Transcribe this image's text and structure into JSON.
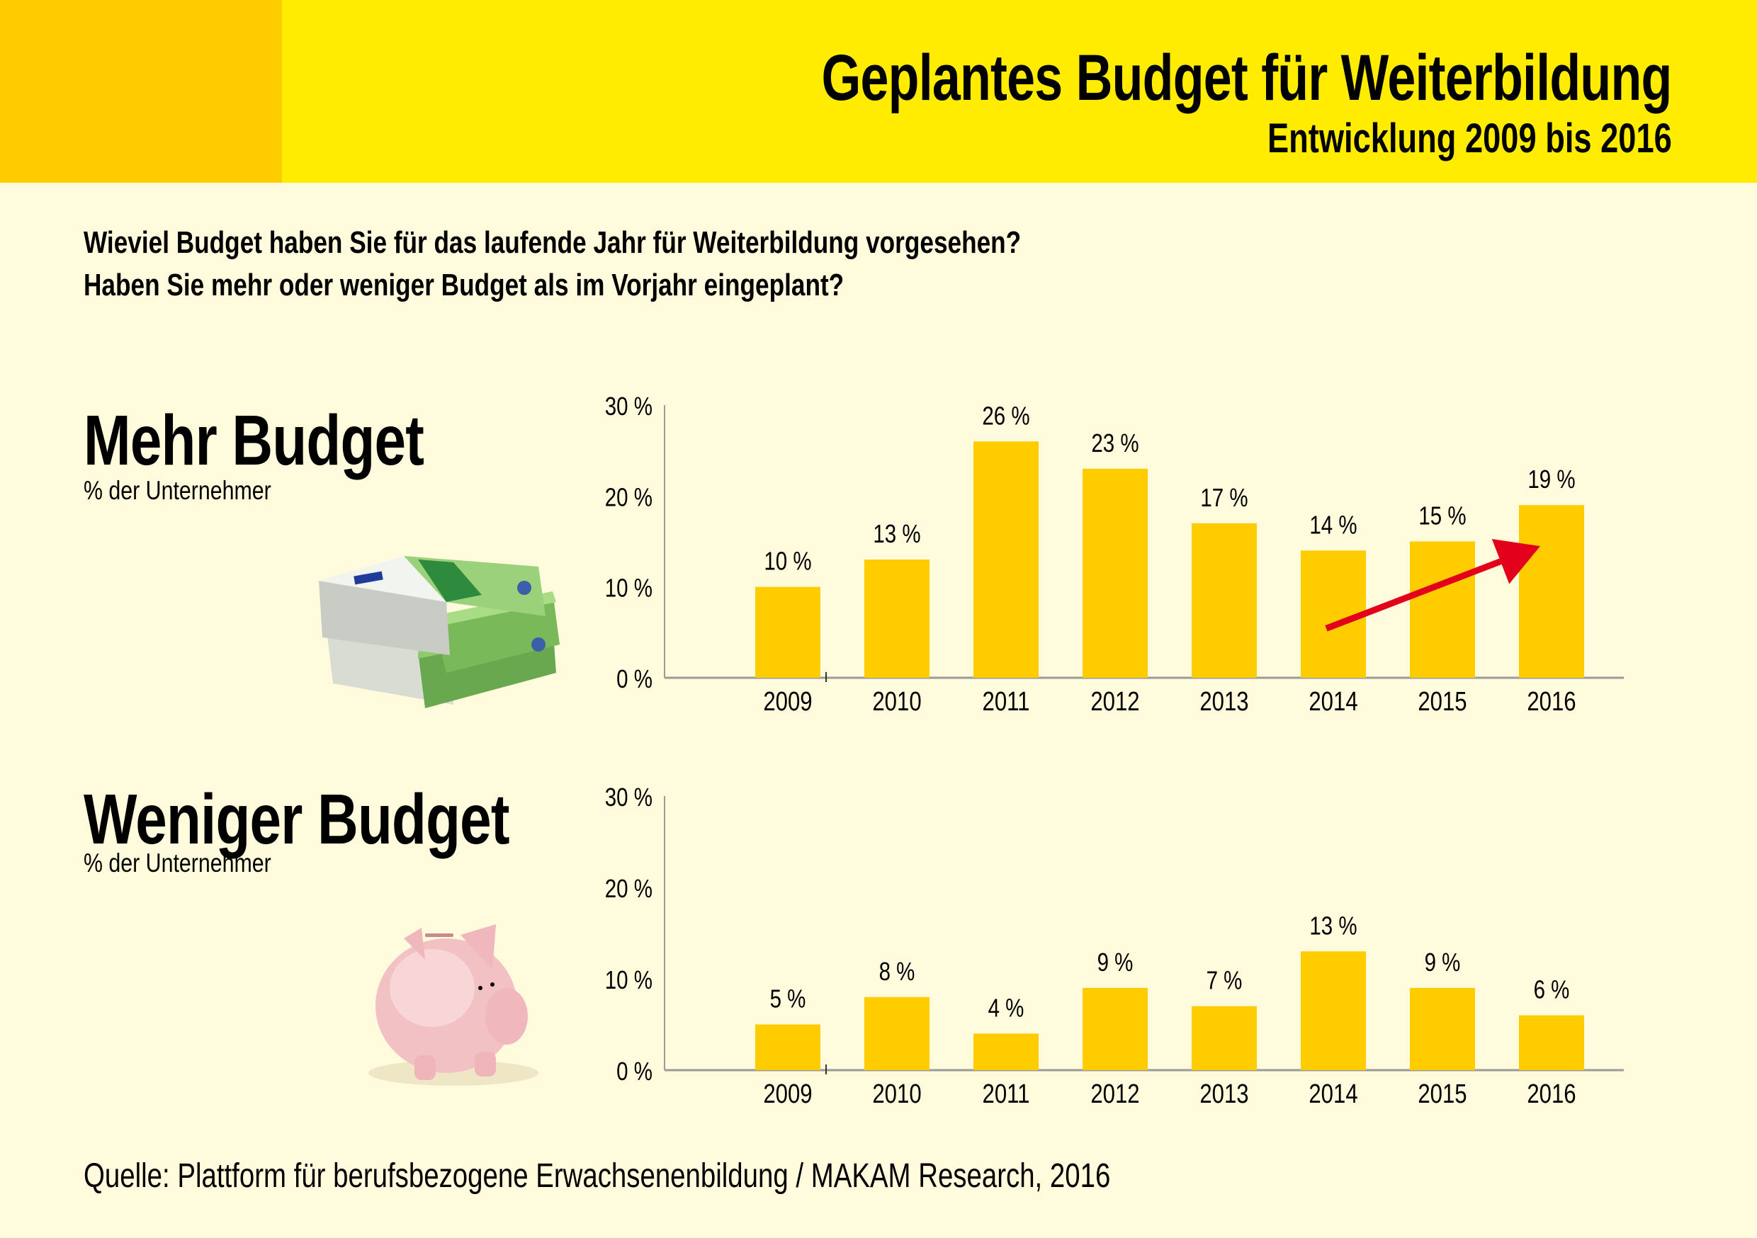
{
  "header": {
    "title": "Geplantes Budget für Weiterbildung",
    "subtitle": "Entwicklung 2009 bis 2016"
  },
  "questions": [
    "Wieviel Budget haben Sie für das laufende Jahr für Weiterbildung vorgesehen?",
    "Haben Sie mehr oder weniger Budget als im Vorjahr eingeplant?"
  ],
  "sections": [
    {
      "title": "Mehr Budget",
      "subtitle": "% der Unternehmer",
      "illustration": "euro-banknotes-icon"
    },
    {
      "title": "Weniger Budget",
      "subtitle": "% der Unternehmer",
      "illustration": "piggy-bank-icon"
    }
  ],
  "source": "Quelle: Plattform für berufsbezogene Erwachsenenbildung / MAKAM Research, 2016",
  "colors": {
    "header_bg": "#FFEC00",
    "header_accent": "#FFCC00",
    "page_bg": "#FFFBDC",
    "bar": "#FFCC00",
    "trend_arrow": "#E2001A"
  },
  "chart_data": [
    {
      "type": "bar",
      "title": "Mehr Budget",
      "xlabel": "",
      "ylabel": "% der Unternehmer",
      "categories": [
        "2009",
        "2010",
        "2011",
        "2012",
        "2013",
        "2014",
        "2015",
        "2016"
      ],
      "values": [
        10,
        13,
        26,
        23,
        17,
        14,
        15,
        19
      ],
      "data_labels": [
        "10 %",
        "13 %",
        "26 %",
        "23 %",
        "17 %",
        "14 %",
        "15 %",
        "19 %"
      ],
      "yticks": [
        "0 %",
        "10 %",
        "20 %",
        "30 %"
      ],
      "ytick_values": [
        0,
        10,
        20,
        30
      ],
      "ylim": [
        0,
        30
      ],
      "grid": false,
      "annotation": {
        "type": "trend-arrow",
        "direction": "up",
        "from_category": "2014",
        "to_category": "2016"
      }
    },
    {
      "type": "bar",
      "title": "Weniger Budget",
      "xlabel": "",
      "ylabel": "% der Unternehmer",
      "categories": [
        "2009",
        "2010",
        "2011",
        "2012",
        "2013",
        "2014",
        "2015",
        "2016"
      ],
      "values": [
        5,
        8,
        4,
        9,
        7,
        13,
        9,
        6
      ],
      "data_labels": [
        "5 %",
        "8 %",
        "4 %",
        "9 %",
        "7 %",
        "13 %",
        "9 %",
        "6 %"
      ],
      "yticks": [
        "0 %",
        "10 %",
        "20 %",
        "30 %"
      ],
      "ytick_values": [
        0,
        10,
        20,
        30
      ],
      "ylim": [
        0,
        30
      ],
      "grid": false
    }
  ]
}
